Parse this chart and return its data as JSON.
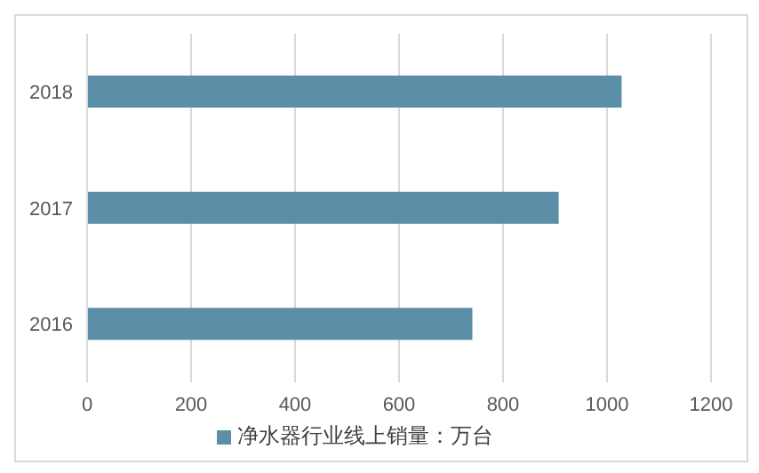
{
  "chart_data": {
    "type": "bar",
    "orientation": "horizontal",
    "categories": [
      "2018",
      "2017",
      "2016"
    ],
    "series": [
      {
        "name": "净水器行业线上销量：万台",
        "color": "#5b8fa8",
        "values": [
          1028,
          907,
          741
        ]
      }
    ],
    "xlim": [
      0,
      1200
    ],
    "xticks": [
      0,
      200,
      400,
      600,
      800,
      1000,
      1200
    ],
    "grid": "x",
    "legend": "bottom"
  }
}
